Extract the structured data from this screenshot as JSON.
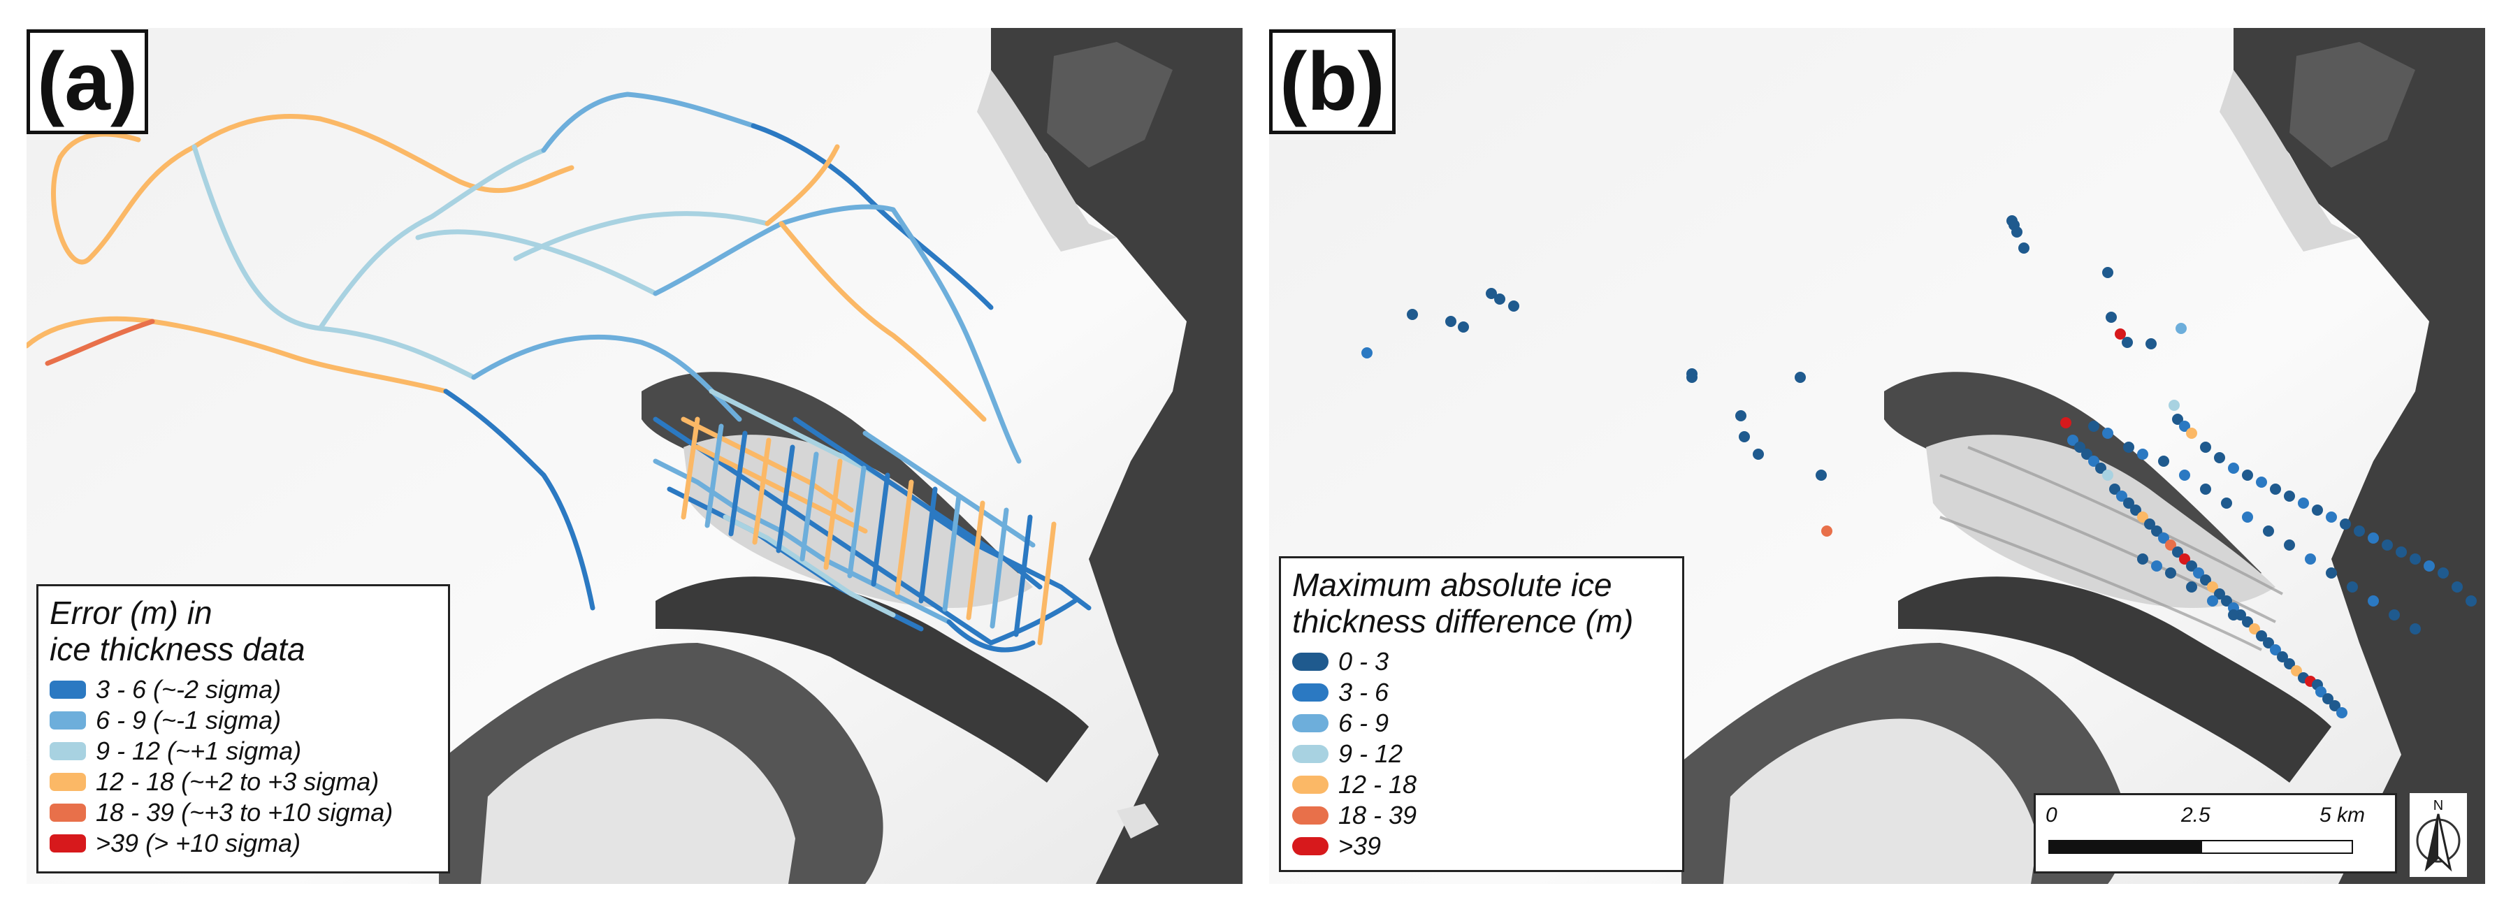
{
  "panel_a": {
    "label": "(a)",
    "legend": {
      "title_line1": "Error (m) in",
      "title_line2": "ice thickness data",
      "items": [
        {
          "label": "3 - 6 (~-2 sigma)",
          "color": "#2b79c2"
        },
        {
          "label": "6 - 9 (~-1 sigma)",
          "color": "#6daedb"
        },
        {
          "label": "9 - 12 (~+1 sigma)",
          "color": "#a8d2e1"
        },
        {
          "label": "12 - 18 (~+2 to +3 sigma)",
          "color": "#fbb866"
        },
        {
          "label": "18 - 39 (~+3 to +10 sigma)",
          "color": "#e8704a"
        },
        {
          "label": ">39 (> +10 sigma)",
          "color": "#d7191c"
        }
      ]
    }
  },
  "panel_b": {
    "label": "(b)",
    "legend": {
      "title_line1": "Maximum absolute ice",
      "title_line2": "thickness difference (m)",
      "items": [
        {
          "label": "0 - 3",
          "color": "#1f5a8e"
        },
        {
          "label": "3 - 6",
          "color": "#2b79c2"
        },
        {
          "label": "6 - 9",
          "color": "#6daedb"
        },
        {
          "label": "9 - 12",
          "color": "#a8d2e1"
        },
        {
          "label": "12 - 18",
          "color": "#fbb866"
        },
        {
          "label": "18 - 39",
          "color": "#e8704a"
        },
        {
          "label": ">39",
          "color": "#d7191c"
        }
      ]
    },
    "scalebar": {
      "tick_0": "0",
      "tick_mid": "2.5",
      "tick_end": "5 km"
    },
    "north_arrow": {
      "letter": "N",
      "icon": "north-arrow-icon"
    }
  }
}
